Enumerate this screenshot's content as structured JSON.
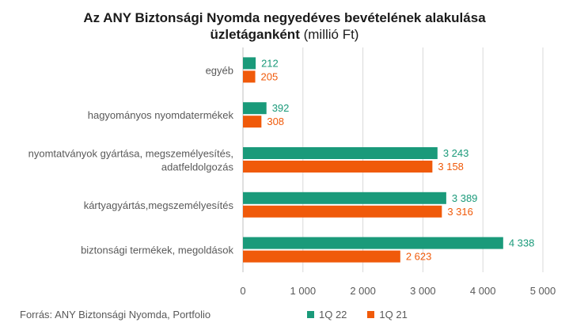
{
  "chart_data": {
    "type": "bar",
    "orientation": "horizontal",
    "title": "Az ANY Biztonsági Nyomda negyedéves bevételének alakulása üzletáganként",
    "title_unit": "(millió Ft)",
    "categories": [
      "egyéb",
      "hagyományos nyomdatermékek",
      "nyomtatványok gyártása, megszemélyesítés, adatfeldolgozás",
      "kártyagyártás,megszemélyesítés",
      "biztonsági termékek, megoldások"
    ],
    "series": [
      {
        "name": "1Q 22",
        "color": "#1a9a7a",
        "values": [
          212,
          392,
          3243,
          3389,
          4338
        ],
        "labels": [
          "212",
          "392",
          "3 243",
          "3 389",
          "4 338"
        ]
      },
      {
        "name": "1Q 21",
        "color": "#f05a0a",
        "values": [
          205,
          308,
          3158,
          3316,
          2623
        ],
        "labels": [
          "205",
          "308",
          "3 158",
          "3 316",
          "2 623"
        ]
      }
    ],
    "xlim": [
      0,
      5000
    ],
    "xticks": [
      0,
      1000,
      2000,
      3000,
      4000,
      5000
    ],
    "xtick_labels": [
      "0",
      "1 000",
      "2 000",
      "3 000",
      "4 000",
      "5 000"
    ],
    "grid": true,
    "legend_position": "bottom"
  },
  "title_line1": "Az ANY Biztonsági Nyomda negyedéves bevételének alakulása",
  "title_line2": "üzletáganként",
  "title_unit": "(millió Ft)",
  "source": "Forrás: ANY Biztonsági Nyomda, Portfolio"
}
